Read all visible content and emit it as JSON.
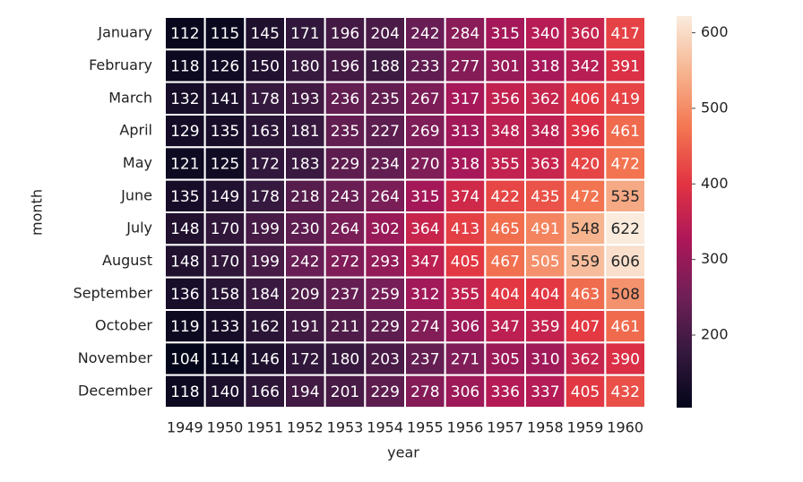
{
  "chart_data": {
    "type": "heatmap",
    "xlabel": "year",
    "ylabel": "month",
    "categories": [
      "1949",
      "1950",
      "1951",
      "1952",
      "1953",
      "1954",
      "1955",
      "1956",
      "1957",
      "1958",
      "1959",
      "1960"
    ],
    "rows": [
      "January",
      "February",
      "March",
      "April",
      "May",
      "June",
      "July",
      "August",
      "September",
      "October",
      "November",
      "December"
    ],
    "values": [
      [
        112,
        115,
        145,
        171,
        196,
        204,
        242,
        284,
        315,
        340,
        360,
        417
      ],
      [
        118,
        126,
        150,
        180,
        196,
        188,
        233,
        277,
        301,
        318,
        342,
        391
      ],
      [
        132,
        141,
        178,
        193,
        236,
        235,
        267,
        317,
        356,
        362,
        406,
        419
      ],
      [
        129,
        135,
        163,
        181,
        235,
        227,
        269,
        313,
        348,
        348,
        396,
        461
      ],
      [
        121,
        125,
        172,
        183,
        229,
        234,
        270,
        318,
        355,
        363,
        420,
        472
      ],
      [
        135,
        149,
        178,
        218,
        243,
        264,
        315,
        374,
        422,
        435,
        472,
        535
      ],
      [
        148,
        170,
        199,
        230,
        264,
        302,
        364,
        413,
        465,
        491,
        548,
        622
      ],
      [
        148,
        170,
        199,
        242,
        272,
        293,
        347,
        405,
        467,
        505,
        559,
        606
      ],
      [
        136,
        158,
        184,
        209,
        237,
        259,
        312,
        355,
        404,
        404,
        463,
        508
      ],
      [
        119,
        133,
        162,
        191,
        211,
        229,
        274,
        306,
        347,
        359,
        407,
        461
      ],
      [
        104,
        114,
        146,
        172,
        180,
        203,
        237,
        271,
        305,
        310,
        362,
        390
      ],
      [
        118,
        140,
        166,
        194,
        201,
        229,
        278,
        306,
        336,
        337,
        405,
        432
      ]
    ],
    "clim": [
      104,
      622
    ],
    "cticks": [
      200,
      300,
      400,
      500,
      600
    ],
    "colors": [
      "#03051a",
      "#35193e",
      "#701f57",
      "#ad1759",
      "#e13342",
      "#f37651",
      "#f6b48f",
      "#faebdd"
    ]
  }
}
